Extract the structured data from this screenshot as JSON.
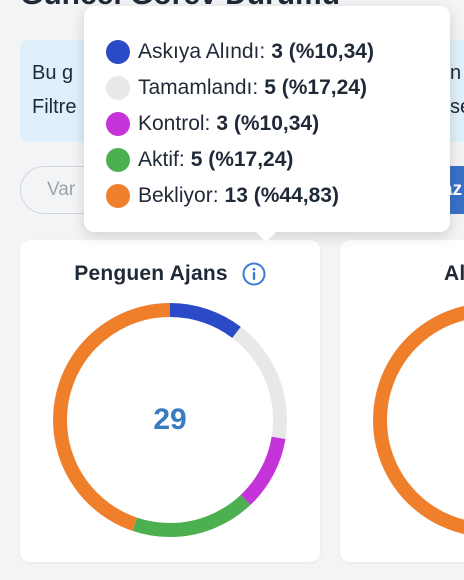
{
  "header": {
    "title": "Güncel Görev Durumu"
  },
  "info_banner": {
    "line1_left": "Bu g",
    "line2_left": "Filtre",
    "line1_right": "n",
    "line2_right": "se"
  },
  "filters": {
    "pill_label": "Var",
    "blue_button_label": "az"
  },
  "tooltip": {
    "items": [
      {
        "label": "Askıya Alındı:",
        "value": "3 (%10,34)",
        "color": "#2b4ac7"
      },
      {
        "label": "Tamamlandı:",
        "value": "5 (%17,24)",
        "color": "#e8e8e8"
      },
      {
        "label": "Kontrol:",
        "value": "3 (%10,34)",
        "color": "#c534d8"
      },
      {
        "label": "Aktif:",
        "value": "5 (%17,24)",
        "color": "#4caf50"
      },
      {
        "label": "Bekliyor:",
        "value": "13 (%44,83)",
        "color": "#f07f2c"
      }
    ]
  },
  "cards": [
    {
      "title": "Penguen Ajans",
      "total": "29"
    },
    {
      "title": "Al"
    }
  ],
  "chart_data": {
    "type": "pie",
    "title": "Penguen Ajans",
    "center_label": "29",
    "slices": [
      {
        "name": "Askıya Alındı",
        "value": 3,
        "percent": 10.34,
        "color": "#2b4ac7"
      },
      {
        "name": "Tamamlandı",
        "value": 5,
        "percent": 17.24,
        "color": "#e8e8e8"
      },
      {
        "name": "Kontrol",
        "value": 3,
        "percent": 10.34,
        "color": "#c534d8"
      },
      {
        "name": "Aktif",
        "value": 5,
        "percent": 17.24,
        "color": "#4caf50"
      },
      {
        "name": "Bekliyor",
        "value": 13,
        "percent": 44.83,
        "color": "#f07f2c"
      }
    ]
  }
}
